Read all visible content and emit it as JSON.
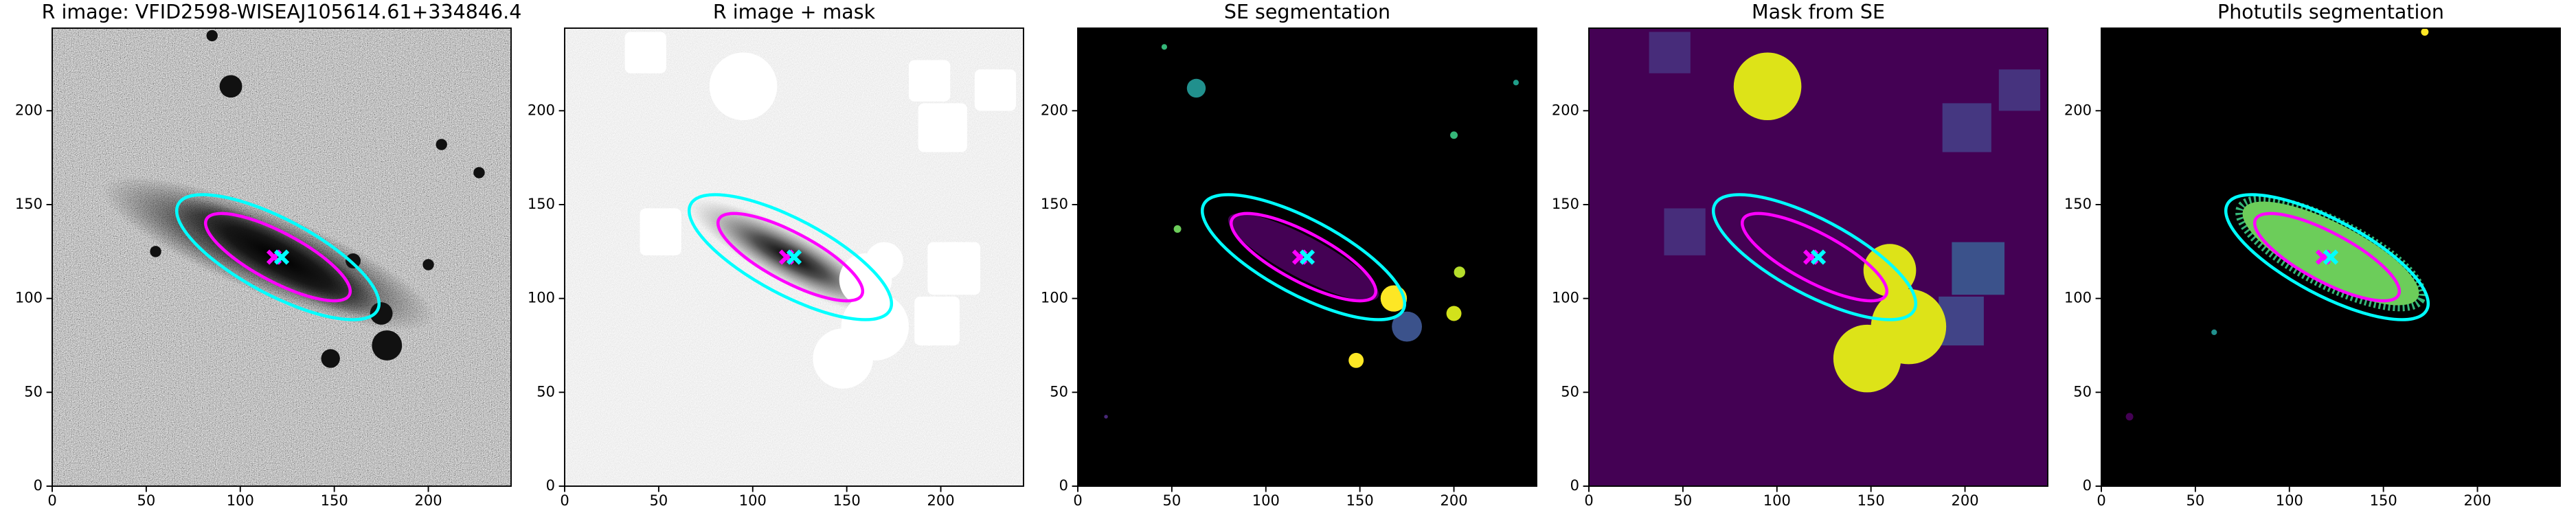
{
  "chart_data": [
    {
      "type": "image",
      "title": "R image: VFID2598-WISEAJ105614.61+334846.4",
      "xlim": [
        0,
        244
      ],
      "ylim": [
        0,
        244
      ],
      "xticks": [
        0,
        50,
        100,
        150,
        200
      ],
      "yticks": [
        0,
        50,
        100,
        150,
        200
      ],
      "ellipses": [
        {
          "x": 120,
          "y": 122,
          "a": 60,
          "b": 20,
          "angle": -28,
          "color": "#00ffff"
        },
        {
          "x": 120,
          "y": 122,
          "a": 43,
          "b": 13,
          "angle": -28,
          "color": "#ff00ff"
        }
      ],
      "markers": [
        {
          "x": 118,
          "y": 122,
          "color": "#ff00ff"
        },
        {
          "x": 122,
          "y": 122,
          "color": "#00ffff"
        }
      ]
    },
    {
      "type": "image",
      "title": "R image + mask",
      "xlim": [
        0,
        244
      ],
      "ylim": [
        0,
        244
      ],
      "xticks": [
        0,
        50,
        100,
        150,
        200
      ],
      "yticks": [
        0,
        50,
        100,
        150,
        200
      ],
      "ellipses": [
        {
          "x": 120,
          "y": 122,
          "a": 60,
          "b": 20,
          "angle": -28,
          "color": "#00ffff"
        },
        {
          "x": 120,
          "y": 122,
          "a": 43,
          "b": 13,
          "angle": -28,
          "color": "#ff00ff"
        }
      ],
      "markers": [
        {
          "x": 118,
          "y": 122,
          "color": "#ff00ff"
        },
        {
          "x": 122,
          "y": 122,
          "color": "#00ffff"
        }
      ]
    },
    {
      "type": "image",
      "title": "SE segmentation",
      "xlim": [
        0,
        244
      ],
      "ylim": [
        0,
        244
      ],
      "xticks": [
        0,
        50,
        100,
        150,
        200
      ],
      "yticks": [
        0,
        50,
        100,
        150,
        200
      ],
      "ellipses": [
        {
          "x": 120,
          "y": 122,
          "a": 60,
          "b": 20,
          "angle": -28,
          "color": "#00ffff"
        },
        {
          "x": 120,
          "y": 122,
          "a": 43,
          "b": 13,
          "angle": -28,
          "color": "#ff00ff"
        }
      ],
      "markers": [
        {
          "x": 118,
          "y": 122,
          "color": "#ff00ff"
        },
        {
          "x": 122,
          "y": 122,
          "color": "#00ffff"
        }
      ]
    },
    {
      "type": "image",
      "title": "Mask from SE",
      "xlim": [
        0,
        244
      ],
      "ylim": [
        0,
        244
      ],
      "xticks": [
        0,
        50,
        100,
        150,
        200
      ],
      "yticks": [
        0,
        50,
        100,
        150,
        200
      ],
      "ellipses": [
        {
          "x": 120,
          "y": 122,
          "a": 60,
          "b": 20,
          "angle": -28,
          "color": "#00ffff"
        },
        {
          "x": 120,
          "y": 122,
          "a": 43,
          "b": 13,
          "angle": -28,
          "color": "#ff00ff"
        }
      ],
      "markers": [
        {
          "x": 118,
          "y": 122,
          "color": "#ff00ff"
        },
        {
          "x": 122,
          "y": 122,
          "color": "#00ffff"
        }
      ]
    },
    {
      "type": "image",
      "title": "Photutils segmentation",
      "xlim": [
        0,
        244
      ],
      "ylim": [
        0,
        244
      ],
      "xticks": [
        0,
        50,
        100,
        150,
        200
      ],
      "yticks": [
        0,
        50,
        100,
        150,
        200
      ],
      "ellipses": [
        {
          "x": 120,
          "y": 122,
          "a": 60,
          "b": 20,
          "angle": -28,
          "color": "#00ffff"
        },
        {
          "x": 120,
          "y": 122,
          "a": 43,
          "b": 13,
          "angle": -28,
          "color": "#ff00ff"
        }
      ],
      "markers": [
        {
          "x": 118,
          "y": 122,
          "color": "#ff00ff"
        },
        {
          "x": 122,
          "y": 122,
          "color": "#00ffff"
        }
      ]
    }
  ]
}
